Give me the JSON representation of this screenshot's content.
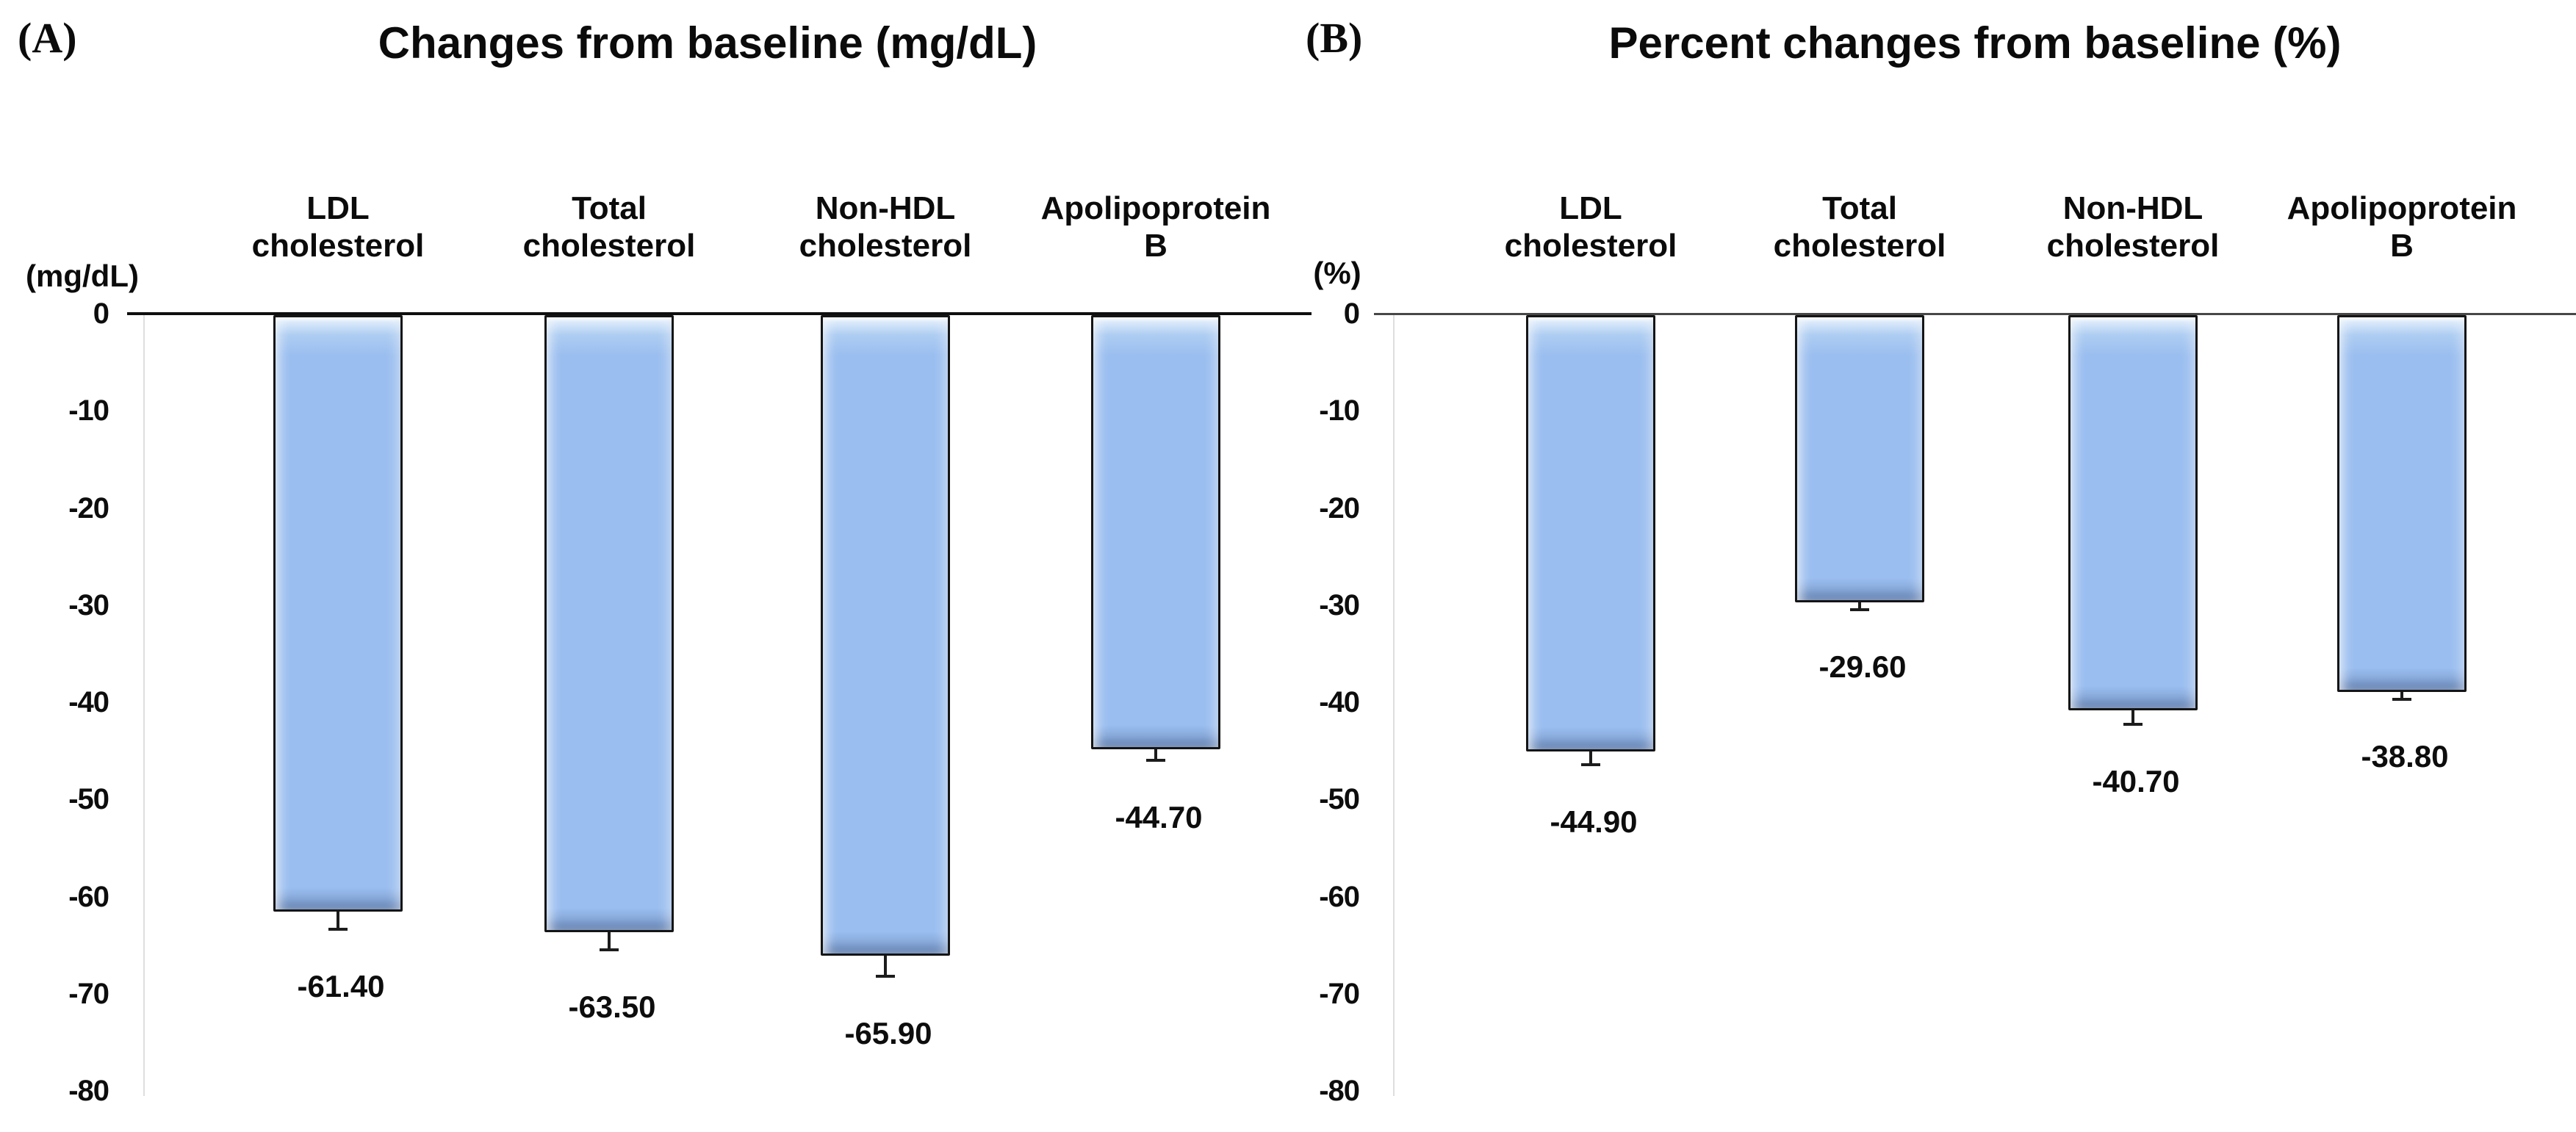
{
  "figure": {
    "background": "#ffffff",
    "bar_fill_color": "#9ABEF0",
    "bar_border_color": "#151515",
    "error_bar_color": "#1c1c1c"
  },
  "chart_data": [
    {
      "type": "bar",
      "panel_label": "(A)",
      "title": "Changes from baseline (mg/dL)",
      "ylabel": "(mg/dL)",
      "categories": [
        "LDL\ncholesterol",
        "Total\ncholesterol",
        "Non-HDL\ncholesterol",
        "Apolipoprotein\nB"
      ],
      "values": [
        -61.4,
        -63.5,
        -65.9,
        -44.7
      ],
      "data_labels": [
        "-61.40",
        "-63.50",
        "-65.90",
        "-44.70"
      ],
      "errors": [
        2.0,
        2.0,
        2.3,
        1.3
      ],
      "yticks": [
        "0",
        "-10",
        "-20",
        "-30",
        "-40",
        "-50",
        "-60",
        "-70",
        "-80"
      ],
      "ylim": [
        -80,
        0
      ],
      "grid": false,
      "legend": null,
      "axis_color": "#0f0f0f"
    },
    {
      "type": "bar",
      "panel_label": "(B)",
      "title": "Percent changes from baseline (%)",
      "ylabel": "(%)",
      "categories": [
        "LDL\ncholesterol",
        "Total\ncholesterol",
        "Non-HDL\ncholesterol",
        "Apolipoprotein\nB"
      ],
      "values": [
        -44.9,
        -29.6,
        -40.7,
        -38.8
      ],
      "data_labels": [
        "-44.90",
        "-29.60",
        "-40.70",
        "-38.80"
      ],
      "errors": [
        1.5,
        0.9,
        1.6,
        0.9
      ],
      "yticks": [
        "0",
        "-10",
        "-20",
        "-30",
        "-40",
        "-50",
        "-60",
        "-70",
        "-80"
      ],
      "ylim": [
        -80,
        0
      ],
      "grid": false,
      "legend": null,
      "axis_color": "#474747"
    }
  ]
}
